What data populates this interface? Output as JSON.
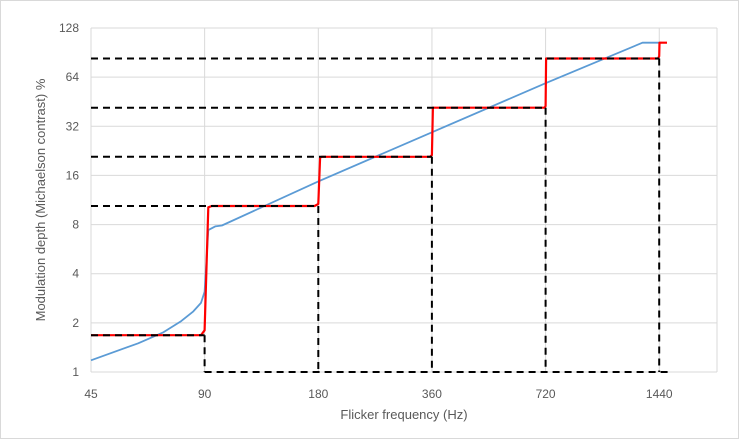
{
  "chart_data": {
    "type": "line",
    "title": "",
    "xlabel": "Flicker frequency (Hz)",
    "ylabel": "Modulation depth (Michaelson contrast) %",
    "x_scale": "log2",
    "y_scale": "log2",
    "xlim": [
      45,
      2048
    ],
    "ylim": [
      1,
      128
    ],
    "x_ticks": [
      45,
      90,
      180,
      360,
      720,
      1440
    ],
    "x_tick_labels": [
      "45",
      "90",
      "180",
      "360",
      "720",
      "1440"
    ],
    "y_ticks": [
      1,
      2,
      4,
      8,
      16,
      32,
      64,
      128
    ],
    "y_tick_labels": [
      "1",
      "2",
      "4",
      "8",
      "16",
      "32",
      "64",
      "128"
    ],
    "grid": true,
    "legend": "none",
    "series": [
      {
        "color": "#5b9bd5",
        "style": "solid",
        "x": [
          45,
          60,
          70,
          78,
          84,
          88,
          90,
          92,
          96,
          100,
          180,
          360,
          720,
          1300,
          1440,
          1460
        ],
        "y": [
          1.18,
          1.5,
          1.75,
          2.05,
          2.35,
          2.65,
          3.1,
          7.4,
          7.8,
          7.9,
          14.7,
          29.4,
          58.8,
          104,
          104,
          104
        ]
      },
      {
        "color": "#ff0000",
        "style": "solid",
        "x": [
          45,
          88,
          90,
          92,
          94,
          176,
          180,
          182,
          184,
          356,
          360,
          362,
          364,
          716,
          720,
          722,
          724,
          1430,
          1440,
          1442,
          1444,
          1510
        ],
        "y": [
          1.68,
          1.68,
          1.8,
          10.2,
          10.4,
          10.4,
          10.7,
          20.6,
          20.8,
          20.8,
          21.3,
          41.6,
          41.6,
          41.6,
          42.6,
          83.2,
          83.2,
          83.2,
          86,
          104,
          104,
          104
        ]
      },
      {
        "color": "#000000",
        "style": "dashed",
        "segments": [
          {
            "x": [
              45,
              90
            ],
            "y": [
              1.68,
              1.68
            ]
          },
          {
            "x": [
              90,
              90
            ],
            "y": [
              1.68,
              1
            ]
          },
          {
            "x": [
              45,
              180
            ],
            "y": [
              10.4,
              10.4
            ]
          },
          {
            "x": [
              180,
              180
            ],
            "y": [
              10.4,
              1
            ]
          },
          {
            "x": [
              45,
              360
            ],
            "y": [
              20.8,
              20.8
            ]
          },
          {
            "x": [
              360,
              360
            ],
            "y": [
              20.8,
              1
            ]
          },
          {
            "x": [
              45,
              720
            ],
            "y": [
              41.6,
              41.6
            ]
          },
          {
            "x": [
              720,
              720
            ],
            "y": [
              41.6,
              1
            ]
          },
          {
            "x": [
              45,
              1440
            ],
            "y": [
              83.2,
              83.2
            ]
          },
          {
            "x": [
              1440,
              1440
            ],
            "y": [
              83.2,
              1
            ]
          },
          {
            "x": [
              90,
              1530
            ],
            "y": [
              1,
              1
            ]
          }
        ]
      }
    ]
  }
}
